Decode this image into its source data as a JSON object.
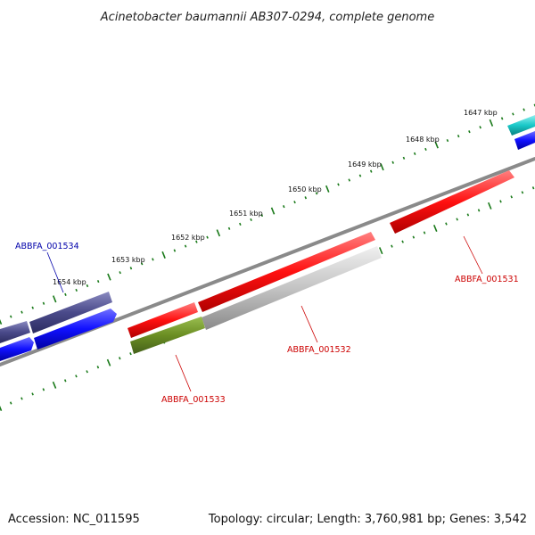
{
  "title": "Acinetobacter baumannii AB307-0294, complete genome",
  "footer": {
    "accession": "Accession: NC_011595",
    "summary": "Topology: circular; Length: 3,760,981 bp; Genes: 3,542"
  },
  "colors": {
    "tick": "#1a7a1a",
    "backbone": "#888888",
    "red": "#ff1010",
    "grey": "#c4c4c4",
    "green": "#6b8e23",
    "blue": "#1010ff",
    "navy": "#4a4a8a",
    "cyan": "#19c8c8",
    "label_red": "#cc0000",
    "label_blue": "#0000aa"
  },
  "scale_labels": [
    "1647 kbp",
    "1648 kbp",
    "1649 kbp",
    "1650 kbp",
    "1651 kbp",
    "1652 kbp",
    "1653 kbp",
    "1654 kbp"
  ],
  "gene_labels": [
    {
      "text": "ABBFA_001531",
      "color": "red"
    },
    {
      "text": "ABBFA_001532",
      "color": "red"
    },
    {
      "text": "ABBFA_001533",
      "color": "red"
    },
    {
      "text": "ABBFA_001534",
      "color": "blue"
    }
  ]
}
